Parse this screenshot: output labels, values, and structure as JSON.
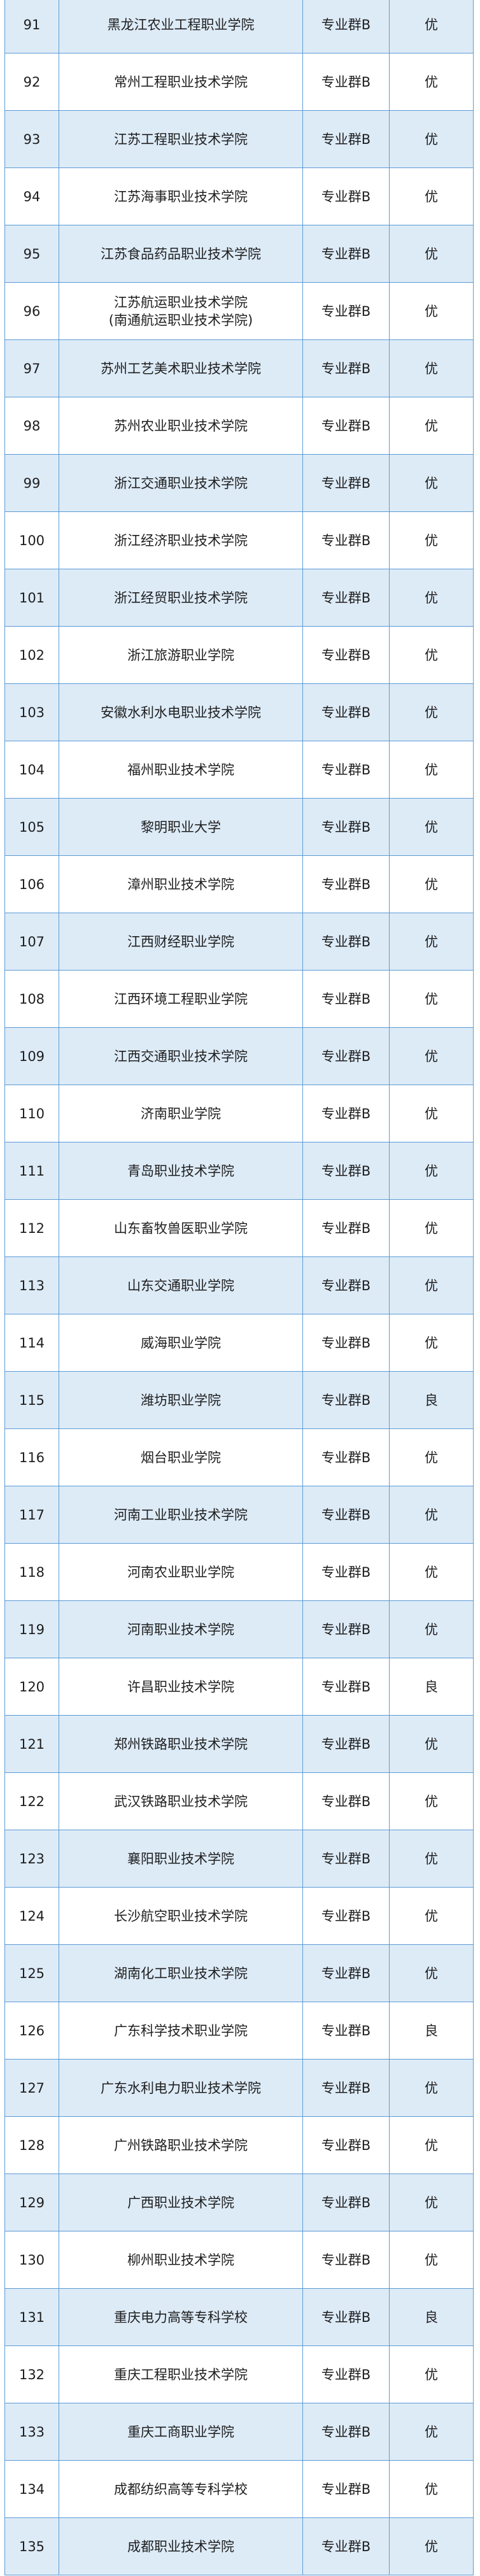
{
  "colors": {
    "border": "#5b9bd5",
    "row_shade": "#ddebf7",
    "text": "#1e1e1e"
  },
  "rows": [
    {
      "no": "91",
      "name": "黑龙江农业工程职业学院",
      "group": "专业群B",
      "grade": "优"
    },
    {
      "no": "92",
      "name": "常州工程职业技术学院",
      "group": "专业群B",
      "grade": "优"
    },
    {
      "no": "93",
      "name": "江苏工程职业技术学院",
      "group": "专业群B",
      "grade": "优"
    },
    {
      "no": "94",
      "name": "江苏海事职业技术学院",
      "group": "专业群B",
      "grade": "优"
    },
    {
      "no": "95",
      "name": "江苏食品药品职业技术学院",
      "group": "专业群B",
      "grade": "优"
    },
    {
      "no": "96",
      "name": "江苏航运职业技术学院\n(南通航运职业技术学院)",
      "group": "专业群B",
      "grade": "优"
    },
    {
      "no": "97",
      "name": "苏州工艺美术职业技术学院",
      "group": "专业群B",
      "grade": "优"
    },
    {
      "no": "98",
      "name": "苏州农业职业技术学院",
      "group": "专业群B",
      "grade": "优"
    },
    {
      "no": "99",
      "name": "浙江交通职业技术学院",
      "group": "专业群B",
      "grade": "优"
    },
    {
      "no": "100",
      "name": "浙江经济职业技术学院",
      "group": "专业群B",
      "grade": "优"
    },
    {
      "no": "101",
      "name": "浙江经贸职业技术学院",
      "group": "专业群B",
      "grade": "优"
    },
    {
      "no": "102",
      "name": "浙江旅游职业学院",
      "group": "专业群B",
      "grade": "优"
    },
    {
      "no": "103",
      "name": "安徽水利水电职业技术学院",
      "group": "专业群B",
      "grade": "优"
    },
    {
      "no": "104",
      "name": "福州职业技术学院",
      "group": "专业群B",
      "grade": "优"
    },
    {
      "no": "105",
      "name": "黎明职业大学",
      "group": "专业群B",
      "grade": "优"
    },
    {
      "no": "106",
      "name": "漳州职业技术学院",
      "group": "专业群B",
      "grade": "优"
    },
    {
      "no": "107",
      "name": "江西财经职业学院",
      "group": "专业群B",
      "grade": "优"
    },
    {
      "no": "108",
      "name": "江西环境工程职业学院",
      "group": "专业群B",
      "grade": "优"
    },
    {
      "no": "109",
      "name": "江西交通职业技术学院",
      "group": "专业群B",
      "grade": "优"
    },
    {
      "no": "110",
      "name": "济南职业学院",
      "group": "专业群B",
      "grade": "优"
    },
    {
      "no": "111",
      "name": "青岛职业技术学院",
      "group": "专业群B",
      "grade": "优"
    },
    {
      "no": "112",
      "name": "山东畜牧兽医职业学院",
      "group": "专业群B",
      "grade": "优"
    },
    {
      "no": "113",
      "name": "山东交通职业学院",
      "group": "专业群B",
      "grade": "优"
    },
    {
      "no": "114",
      "name": "威海职业学院",
      "group": "专业群B",
      "grade": "优"
    },
    {
      "no": "115",
      "name": "潍坊职业学院",
      "group": "专业群B",
      "grade": "良"
    },
    {
      "no": "116",
      "name": "烟台职业学院",
      "group": "专业群B",
      "grade": "优"
    },
    {
      "no": "117",
      "name": "河南工业职业技术学院",
      "group": "专业群B",
      "grade": "优"
    },
    {
      "no": "118",
      "name": "河南农业职业学院",
      "group": "专业群B",
      "grade": "优"
    },
    {
      "no": "119",
      "name": "河南职业技术学院",
      "group": "专业群B",
      "grade": "优"
    },
    {
      "no": "120",
      "name": "许昌职业技术学院",
      "group": "专业群B",
      "grade": "良"
    },
    {
      "no": "121",
      "name": "郑州铁路职业技术学院",
      "group": "专业群B",
      "grade": "优"
    },
    {
      "no": "122",
      "name": "武汉铁路职业技术学院",
      "group": "专业群B",
      "grade": "优"
    },
    {
      "no": "123",
      "name": "襄阳职业技术学院",
      "group": "专业群B",
      "grade": "优"
    },
    {
      "no": "124",
      "name": "长沙航空职业技术学院",
      "group": "专业群B",
      "grade": "优"
    },
    {
      "no": "125",
      "name": "湖南化工职业技术学院",
      "group": "专业群B",
      "grade": "优"
    },
    {
      "no": "126",
      "name": "广东科学技术职业学院",
      "group": "专业群B",
      "grade": "良"
    },
    {
      "no": "127",
      "name": "广东水利电力职业技术学院",
      "group": "专业群B",
      "grade": "优"
    },
    {
      "no": "128",
      "name": "广州铁路职业技术学院",
      "group": "专业群B",
      "grade": "优"
    },
    {
      "no": "129",
      "name": "广西职业技术学院",
      "group": "专业群B",
      "grade": "优"
    },
    {
      "no": "130",
      "name": "柳州职业技术学院",
      "group": "专业群B",
      "grade": "优"
    },
    {
      "no": "131",
      "name": "重庆电力高等专科学校",
      "group": "专业群B",
      "grade": "良"
    },
    {
      "no": "132",
      "name": "重庆工程职业技术学院",
      "group": "专业群B",
      "grade": "优"
    },
    {
      "no": "133",
      "name": "重庆工商职业学院",
      "group": "专业群B",
      "grade": "优"
    },
    {
      "no": "134",
      "name": "成都纺织高等专科学校",
      "group": "专业群B",
      "grade": "优"
    },
    {
      "no": "135",
      "name": "成都职业技术学院",
      "group": "专业群B",
      "grade": "优"
    }
  ]
}
